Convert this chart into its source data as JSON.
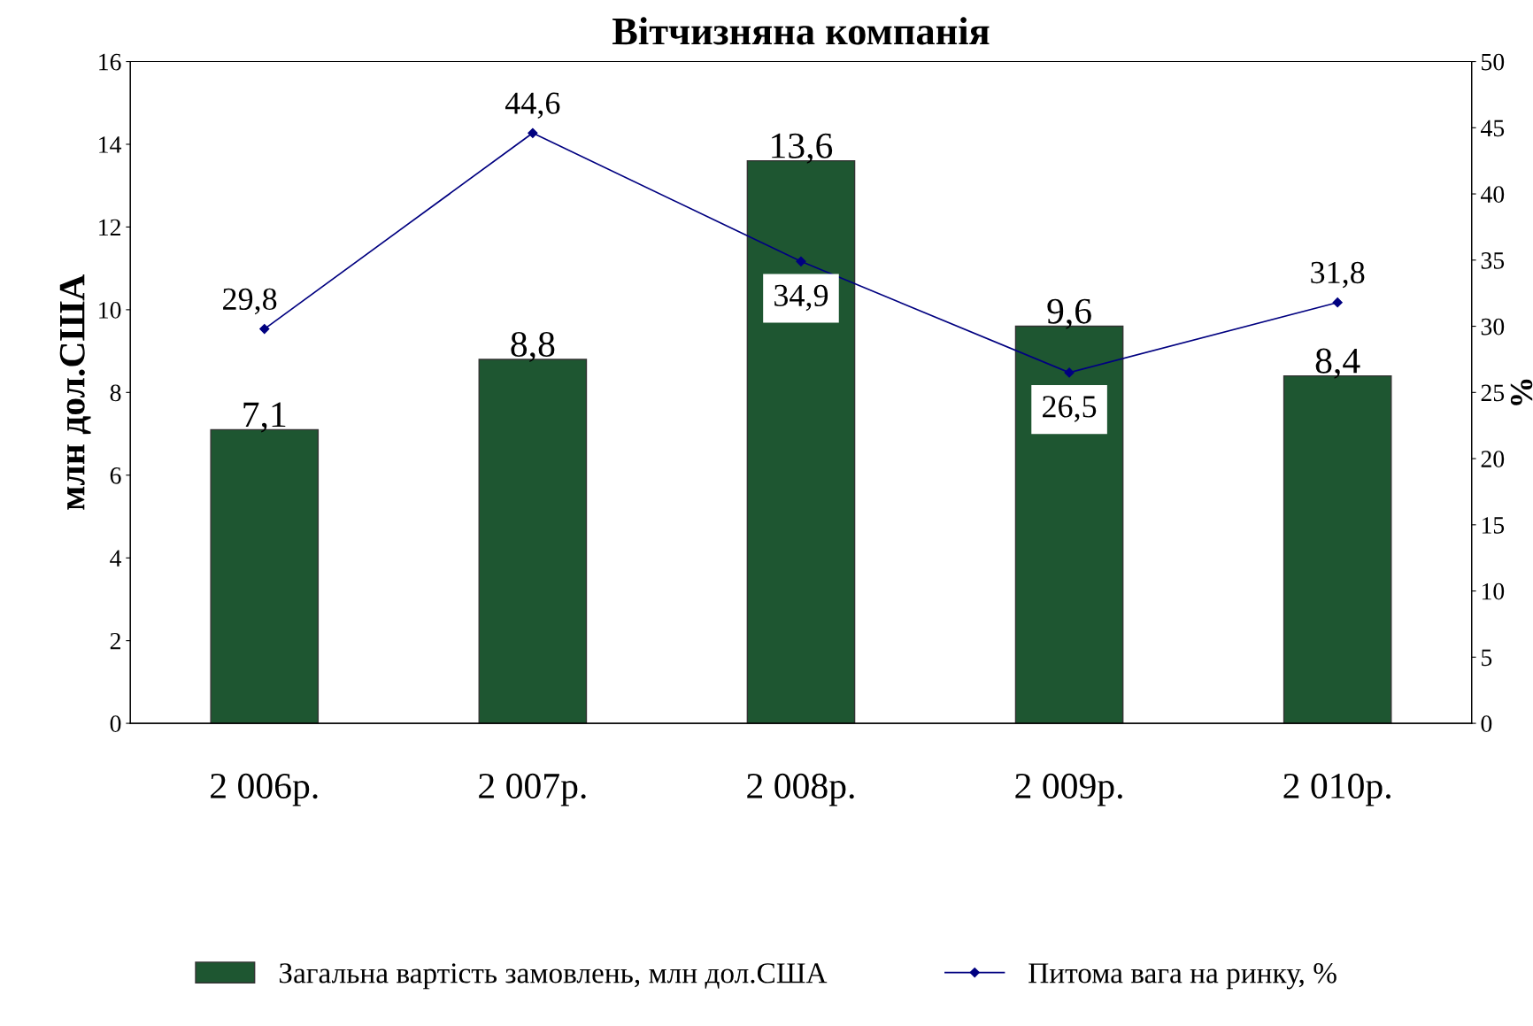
{
  "chart_data": {
    "type": "bar",
    "title": "Вітчизняна компанія",
    "ylabel": "млн дол.США",
    "y2label": "%",
    "categories": [
      "2 006р.",
      "2 007р.",
      "2 008р.",
      "2 009р.",
      "2 010р."
    ],
    "series": [
      {
        "name": "Загальна вартість замовлень, млн дол.США",
        "color": "#1e5631",
        "values": [
          7.1,
          8.8,
          13.6,
          9.6,
          8.4
        ],
        "value_labels": [
          "7,1",
          "8,8",
          "13,6",
          "9,6",
          "8,4"
        ]
      },
      {
        "name": "Питома вага на ринку, %",
        "type": "line",
        "axis": "y2",
        "color": "#000080",
        "marker": "diamond",
        "values": [
          29.8,
          44.6,
          34.9,
          26.5,
          31.8
        ],
        "value_labels": [
          "29,8",
          "44,6",
          "34,9",
          "26,5",
          "31,8"
        ]
      }
    ],
    "ylim": [
      0,
      16
    ],
    "yticks": [
      0,
      2,
      4,
      6,
      8,
      10,
      12,
      14,
      16
    ],
    "y2lim": [
      0,
      50
    ],
    "y2ticks": [
      0,
      5,
      10,
      15,
      20,
      25,
      30,
      35,
      40,
      45,
      50
    ],
    "grid": false,
    "legend": "bottom"
  }
}
